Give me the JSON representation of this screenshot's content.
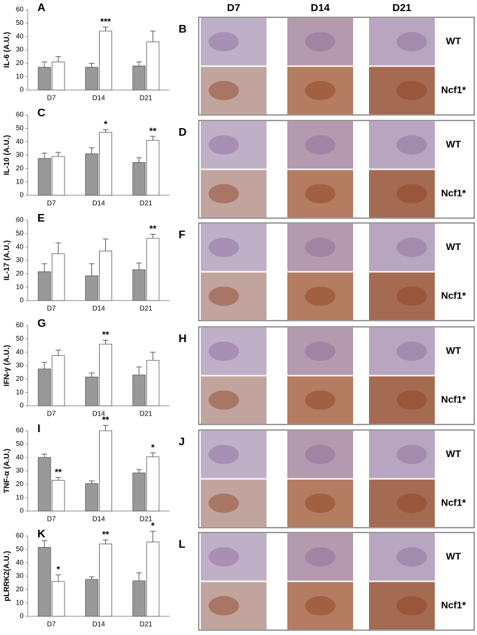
{
  "chart_data": [
    {
      "type": "bar",
      "panel": "A",
      "y_label": "IL-6 (A.U.)",
      "categories": [
        "D7",
        "D14",
        "D21"
      ],
      "ylim": [
        0,
        60
      ],
      "yticks": [
        0,
        10,
        20,
        30,
        40,
        50,
        60
      ],
      "series": [
        {
          "color": "#999999",
          "values": [
            17,
            17,
            18
          ],
          "errors": [
            4,
            3,
            3
          ],
          "significance": [
            null,
            null,
            null
          ]
        },
        {
          "color": "#ffffff",
          "values": [
            21,
            44,
            36
          ],
          "errors": [
            4,
            3,
            8
          ],
          "significance": [
            null,
            "***",
            null
          ]
        }
      ]
    },
    {
      "type": "bar",
      "panel": "C",
      "y_label": "IL-10 (A.U.)",
      "categories": [
        "D7",
        "D14",
        "D21"
      ],
      "ylim": [
        0,
        60
      ],
      "yticks": [
        0,
        10,
        20,
        30,
        40,
        50,
        60
      ],
      "series": [
        {
          "color": "#999999",
          "values": [
            27.5,
            31,
            24.5
          ],
          "errors": [
            4,
            4.5,
            3.5
          ],
          "significance": [
            null,
            null,
            null
          ]
        },
        {
          "color": "#ffffff",
          "values": [
            29,
            47,
            41
          ],
          "errors": [
            3,
            2,
            3
          ],
          "significance": [
            null,
            "*",
            "**"
          ]
        }
      ]
    },
    {
      "type": "bar",
      "panel": "E",
      "y_label": "IL-17 (A.U.)",
      "categories": [
        "D7",
        "D14",
        "D21"
      ],
      "ylim": [
        0,
        60
      ],
      "yticks": [
        0,
        10,
        20,
        30,
        40,
        50,
        60
      ],
      "series": [
        {
          "color": "#999999",
          "values": [
            21.5,
            18.5,
            23
          ],
          "errors": [
            6,
            9,
            5
          ],
          "significance": [
            null,
            null,
            null
          ]
        },
        {
          "color": "#ffffff",
          "values": [
            35,
            37,
            46.5
          ],
          "errors": [
            8,
            9,
            3
          ],
          "significance": [
            null,
            null,
            "**"
          ]
        }
      ]
    },
    {
      "type": "bar",
      "panel": "G",
      "y_label": "IFN-γ (A.U.)",
      "categories": [
        "D7",
        "D14",
        "D21"
      ],
      "ylim": [
        0,
        60
      ],
      "yticks": [
        0,
        10,
        20,
        30,
        40,
        50,
        60
      ],
      "series": [
        {
          "color": "#999999",
          "values": [
            27.5,
            21.5,
            23
          ],
          "errors": [
            5,
            3,
            6
          ],
          "significance": [
            null,
            null,
            null
          ]
        },
        {
          "color": "#ffffff",
          "values": [
            37.5,
            46,
            34
          ],
          "errors": [
            4,
            3,
            6
          ],
          "significance": [
            null,
            "**",
            null
          ]
        }
      ]
    },
    {
      "type": "bar",
      "panel": "I",
      "y_label": "TNF-α (A.U.)",
      "categories": [
        "D7",
        "D14",
        "D21"
      ],
      "ylim": [
        0,
        60
      ],
      "yticks": [
        0,
        10,
        20,
        30,
        40,
        50,
        60
      ],
      "series": [
        {
          "color": "#999999",
          "values": [
            40,
            20.5,
            28.5
          ],
          "errors": [
            2.5,
            2,
            2.5
          ],
          "significance": [
            null,
            null,
            null
          ]
        },
        {
          "color": "#ffffff",
          "values": [
            23,
            60,
            40.5
          ],
          "errors": [
            2,
            4,
            3
          ],
          "significance": [
            "**",
            "**",
            "*"
          ]
        }
      ]
    },
    {
      "type": "bar",
      "panel": "K",
      "y_label": "pLRRK2(A.U.)",
      "categories": [
        "D7",
        "D14",
        "D21"
      ],
      "ylim": [
        0,
        60
      ],
      "yticks": [
        0,
        10,
        20,
        30,
        40,
        50,
        60
      ],
      "series": [
        {
          "color": "#999999",
          "values": [
            51.5,
            27.5,
            26.5
          ],
          "errors": [
            5,
            2,
            6
          ],
          "significance": [
            null,
            null,
            null
          ]
        },
        {
          "color": "#ffffff",
          "values": [
            26,
            54,
            55.5
          ],
          "errors": [
            5,
            3,
            8
          ],
          "significance": [
            "*",
            "**",
            "*"
          ]
        }
      ]
    }
  ],
  "image_panels": {
    "column_labels": [
      "D7",
      "D14",
      "D21"
    ],
    "panels": [
      {
        "letter": "B",
        "rows": [
          "WT",
          "Ncf1*"
        ]
      },
      {
        "letter": "D",
        "rows": [
          "WT",
          "Ncf1*"
        ]
      },
      {
        "letter": "F",
        "rows": [
          "WT",
          "Ncf1*"
        ]
      },
      {
        "letter": "H",
        "rows": [
          "WT",
          "Ncf1*"
        ]
      },
      {
        "letter": "J",
        "rows": [
          "WT",
          "Ncf1*"
        ]
      },
      {
        "letter": "L",
        "rows": [
          "WT",
          "Ncf1*"
        ]
      }
    ]
  }
}
